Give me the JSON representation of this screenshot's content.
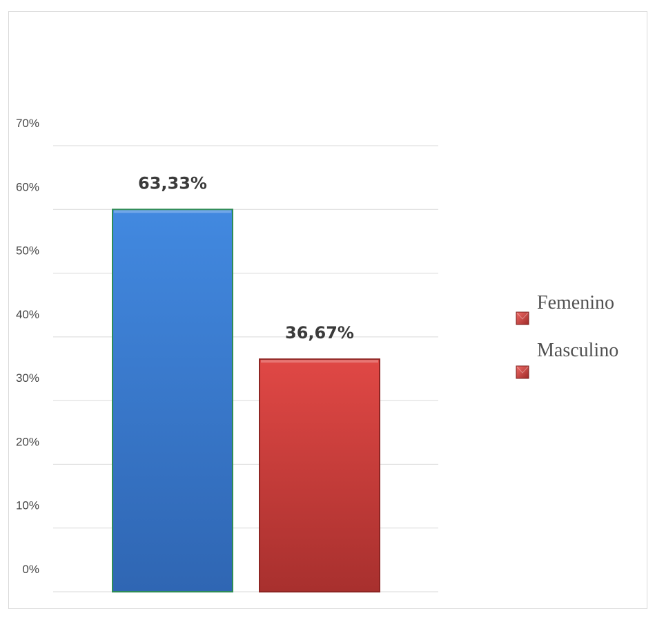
{
  "chart_data": {
    "type": "bar",
    "categories": [
      "Femenino",
      "Masculino"
    ],
    "values": [
      63.33,
      36.67
    ],
    "data_labels": [
      "63,33%",
      "36,67%"
    ],
    "y_ticks": [
      "0%",
      "10%",
      "20%",
      "30%",
      "40%",
      "50%",
      "60%",
      "70%"
    ],
    "ylim": [
      0,
      70
    ],
    "grid": true,
    "legend": {
      "position": "right",
      "entries": [
        "Femenino",
        "Masculino"
      ]
    },
    "colors": {
      "bar_blue": "#3b7dd8",
      "bar_blue_dark": "#2f66b3",
      "bar_blue_edge": "#2e8b57",
      "bar_red": "#d9413e",
      "bar_red_dark": "#a8302e",
      "bar_red_edge": "#8e2523",
      "legend_marker": "#c73a38",
      "grid": "#d9d9d9"
    }
  }
}
